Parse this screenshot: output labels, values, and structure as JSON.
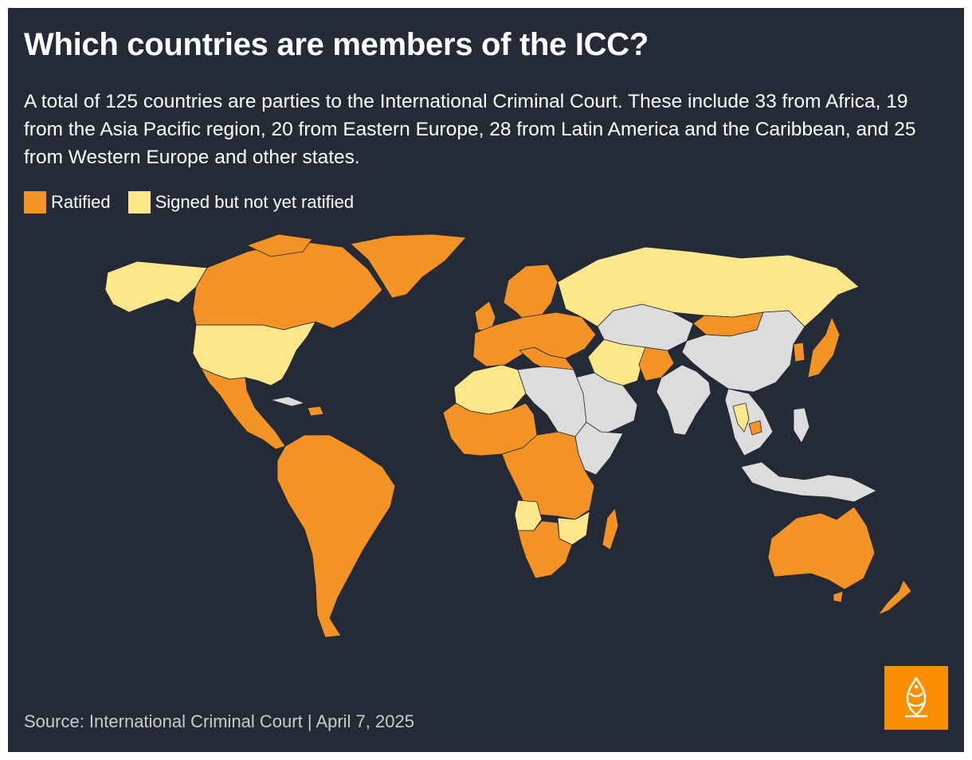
{
  "title": "Which countries are members of the ICC?",
  "subtitle": "A total of 125 countries are parties to the International Criminal Court. These include 33 from Africa, 19 from the Asia Pacific region, 20 from Eastern Europe, 28 from Latin America and the Caribbean, and 25 from Western Europe and other states.",
  "legend": {
    "ratified": {
      "label": "Ratified",
      "color": "#f39325"
    },
    "signed": {
      "label": "Signed but not yet ratified",
      "color": "#fde78a"
    },
    "non_member_color": "#dcdcdc",
    "background_color": "#252b36"
  },
  "map": {
    "regions": {
      "north_america_canada": "ratified",
      "alaska": "signed",
      "greenland": "ratified",
      "usa": "signed",
      "mexico_central_america": "ratified",
      "cuba": "non-member",
      "south_america": "ratified",
      "western_europe": "ratified",
      "russia": "signed",
      "kazakhstan_central_asia": "non-member",
      "mongolia": "ratified",
      "china": "non-member",
      "india": "non-member",
      "japan": "ratified",
      "south_korea": "ratified",
      "north_africa_west": "signed",
      "libya_egypt_sudan": "non-member",
      "west_africa": "ratified",
      "central_east_africa": "ratified",
      "angola_zimbabwe": "signed",
      "horn_of_africa": "non-member",
      "southern_africa": "ratified",
      "madagascar": "ratified",
      "arabian_peninsula": "non-member",
      "iran_iraq": "signed",
      "afghanistan": "ratified",
      "southeast_asia": "non-member",
      "thailand": "signed",
      "cambodia": "ratified",
      "australia": "ratified",
      "new_zealand": "ratified"
    }
  },
  "source": "Source: International Criminal Court | April 7, 2025",
  "logo": {
    "name": "Al Jazeera",
    "color": "#fa9000"
  }
}
